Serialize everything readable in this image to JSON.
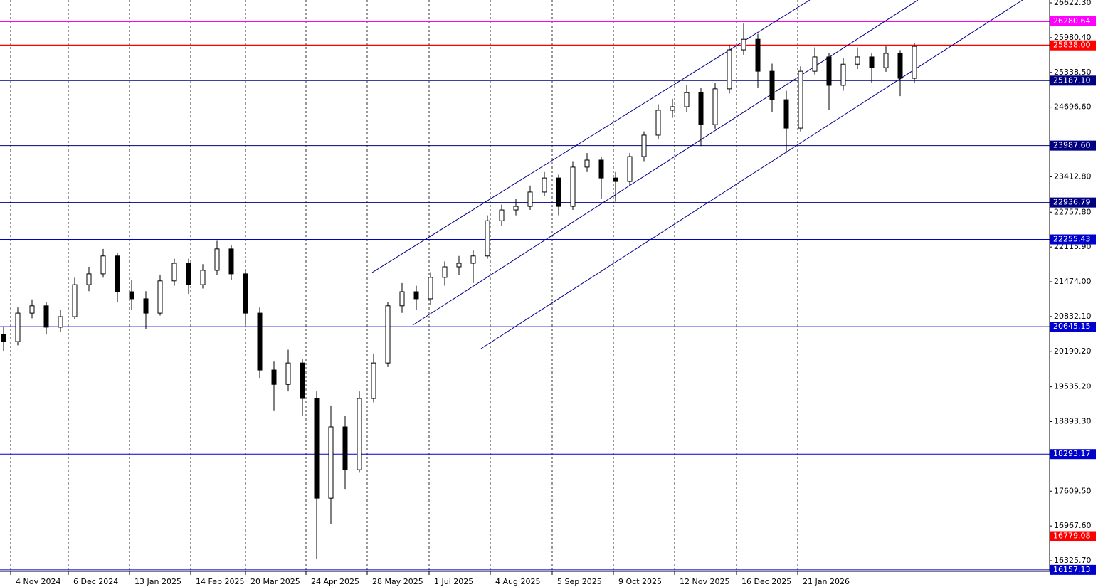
{
  "chart_data": {
    "type": "candlestick",
    "xlim": [
      -0.25,
      73.5
    ],
    "ylim": [
      16129,
      26675
    ],
    "xticks": [
      {
        "value": 0.5,
        "label": "4 Nov 2024"
      },
      {
        "value": 4.55,
        "label": "6 Dec 2024"
      },
      {
        "value": 8.85,
        "label": "13 Jan 2025"
      },
      {
        "value": 13.15,
        "label": "14 Feb 2025"
      },
      {
        "value": 17,
        "label": "20 Mar 2025"
      },
      {
        "value": 21.25,
        "label": "24 Apr 2025"
      },
      {
        "value": 25.55,
        "label": "28 May 2025"
      },
      {
        "value": 29.9,
        "label": "1 Jul 2025"
      },
      {
        "value": 34.2,
        "label": "4 Aug 2025"
      },
      {
        "value": 38.55,
        "label": "5 Sep 2025"
      },
      {
        "value": 42.85,
        "label": "9 Oct 2025"
      },
      {
        "value": 47.15,
        "label": "12 Nov 2025"
      },
      {
        "value": 51.5,
        "label": "16 Dec 2025"
      },
      {
        "value": 55.8,
        "label": "21 Jan 2026"
      }
    ],
    "yticks": [
      {
        "value": 26622.3,
        "label": "26622.30"
      },
      {
        "value": 25980.4,
        "label": "25980.40"
      },
      {
        "value": 25338.5,
        "label": "25338.50"
      },
      {
        "value": 24696.6,
        "label": "24696.60"
      },
      {
        "value": 23412.8,
        "label": "23412.80"
      },
      {
        "value": 22757.8,
        "label": "22757.80"
      },
      {
        "value": 22115.9,
        "label": "22115.90"
      },
      {
        "value": 21474,
        "label": "21474.00"
      },
      {
        "value": 20832.1,
        "label": "20832.10"
      },
      {
        "value": 20190.2,
        "label": "20190.20"
      },
      {
        "value": 19535.2,
        "label": "19535.20"
      },
      {
        "value": 18893.3,
        "label": "18893.30"
      },
      {
        "value": 17609.5,
        "label": "17609.50"
      },
      {
        "value": 16967.6,
        "label": "16967.60"
      },
      {
        "value": 16325.7,
        "label": "16325.70"
      }
    ],
    "levels": [
      {
        "value": 26280.64,
        "label": "26280.64",
        "color": "#ff00ff",
        "line_width": 2
      },
      {
        "value": 25838,
        "label": "25838.00",
        "color": "#ff0000",
        "line_width": 2
      },
      {
        "value": 25187.1,
        "label": "25187.10",
        "color": "#000080",
        "line_width": 1
      },
      {
        "value": 23987.6,
        "label": "23987.60",
        "color": "#000080",
        "line_width": 1
      },
      {
        "value": 22936.79,
        "label": "22936.79",
        "color": "#000080",
        "line_width": 1
      },
      {
        "value": 22255.43,
        "label": "22255.43",
        "color": "#0000cd",
        "line_width": 1
      },
      {
        "value": 20645.15,
        "label": "20645.15",
        "color": "#0000cd",
        "line_width": 1
      },
      {
        "value": 18293.17,
        "label": "18293.17",
        "color": "#0000cd",
        "line_width": 1
      },
      {
        "value": 16779.08,
        "label": "16779.08",
        "color": "#ff0000",
        "line_width": 1
      },
      {
        "value": 16157.13,
        "label": "16157.13",
        "color": "#0000cd",
        "line_width": 1
      }
    ],
    "open": [
      20500,
      20370,
      20895,
      21030,
      20635,
      20830,
      21420,
      21620,
      21950,
      21290,
      21160,
      20895,
      21490,
      21815,
      21420,
      21685,
      22080,
      21620,
      20895,
      19845,
      19580,
      19975,
      19320,
      17480,
      18795,
      18005,
      19320,
      19975,
      21030,
      21290,
      21160,
      21555,
      21750,
      21815,
      21950,
      22600,
      22800,
      22865,
      23130,
      23390,
      22865,
      23590,
      23720,
      23390,
      23325,
      23785,
      24180,
      24640,
      24705,
      24965,
      24375,
      25035,
      25755,
      25950,
      25360,
      24835,
      24310,
      25360,
      25625,
      25100,
      25490,
      25625,
      25425,
      25690,
      25230
    ],
    "high": [
      20650,
      21000,
      21150,
      21100,
      20950,
      21550,
      21750,
      22080,
      22000,
      21500,
      21300,
      21600,
      21900,
      21900,
      21800,
      22230,
      22150,
      21700,
      21000,
      20000,
      20220,
      20050,
      19450,
      19190,
      19000,
      19450,
      20150,
      21100,
      21450,
      21400,
      21650,
      21850,
      21950,
      22050,
      22700,
      22900,
      23000,
      23250,
      23500,
      23450,
      23700,
      23850,
      23780,
      23500,
      23850,
      24250,
      24750,
      24850,
      25100,
      25050,
      25150,
      25850,
      26240,
      26050,
      25500,
      25000,
      25450,
      25800,
      25700,
      25600,
      25800,
      25700,
      25820,
      25750,
      25880
    ],
    "low": [
      20200,
      20300,
      20800,
      20500,
      20550,
      20780,
      21300,
      21550,
      21100,
      20950,
      20600,
      20850,
      21400,
      21250,
      21350,
      21600,
      21500,
      20700,
      19700,
      19100,
      19450,
      19000,
      16365,
      17000,
      17650,
      17950,
      19250,
      19900,
      20900,
      20950,
      21050,
      21400,
      21600,
      21450,
      21900,
      22500,
      22700,
      22800,
      23050,
      22700,
      22800,
      23500,
      23000,
      22950,
      23250,
      23700,
      24100,
      24500,
      24600,
      23980,
      24300,
      24950,
      25650,
      25050,
      24600,
      23850,
      24250,
      25300,
      24650,
      25000,
      25400,
      25150,
      25350,
      24900,
      25150
    ],
    "close": [
      20370,
      20895,
      21030,
      20635,
      20830,
      21420,
      21620,
      21950,
      21290,
      21160,
      20895,
      21490,
      21815,
      21420,
      21685,
      22080,
      21620,
      20895,
      19845,
      19580,
      19975,
      19320,
      17480,
      18795,
      18005,
      19320,
      19975,
      21030,
      21290,
      21160,
      21555,
      21750,
      21815,
      21950,
      22600,
      22800,
      22865,
      23130,
      23390,
      22865,
      23590,
      23720,
      23390,
      23325,
      23785,
      24180,
      24640,
      24705,
      24965,
      24375,
      25035,
      25755,
      25950,
      25360,
      24835,
      24310,
      25360,
      25625,
      25100,
      25490,
      25625,
      25425,
      25690,
      25230,
      25820
    ]
  }
}
